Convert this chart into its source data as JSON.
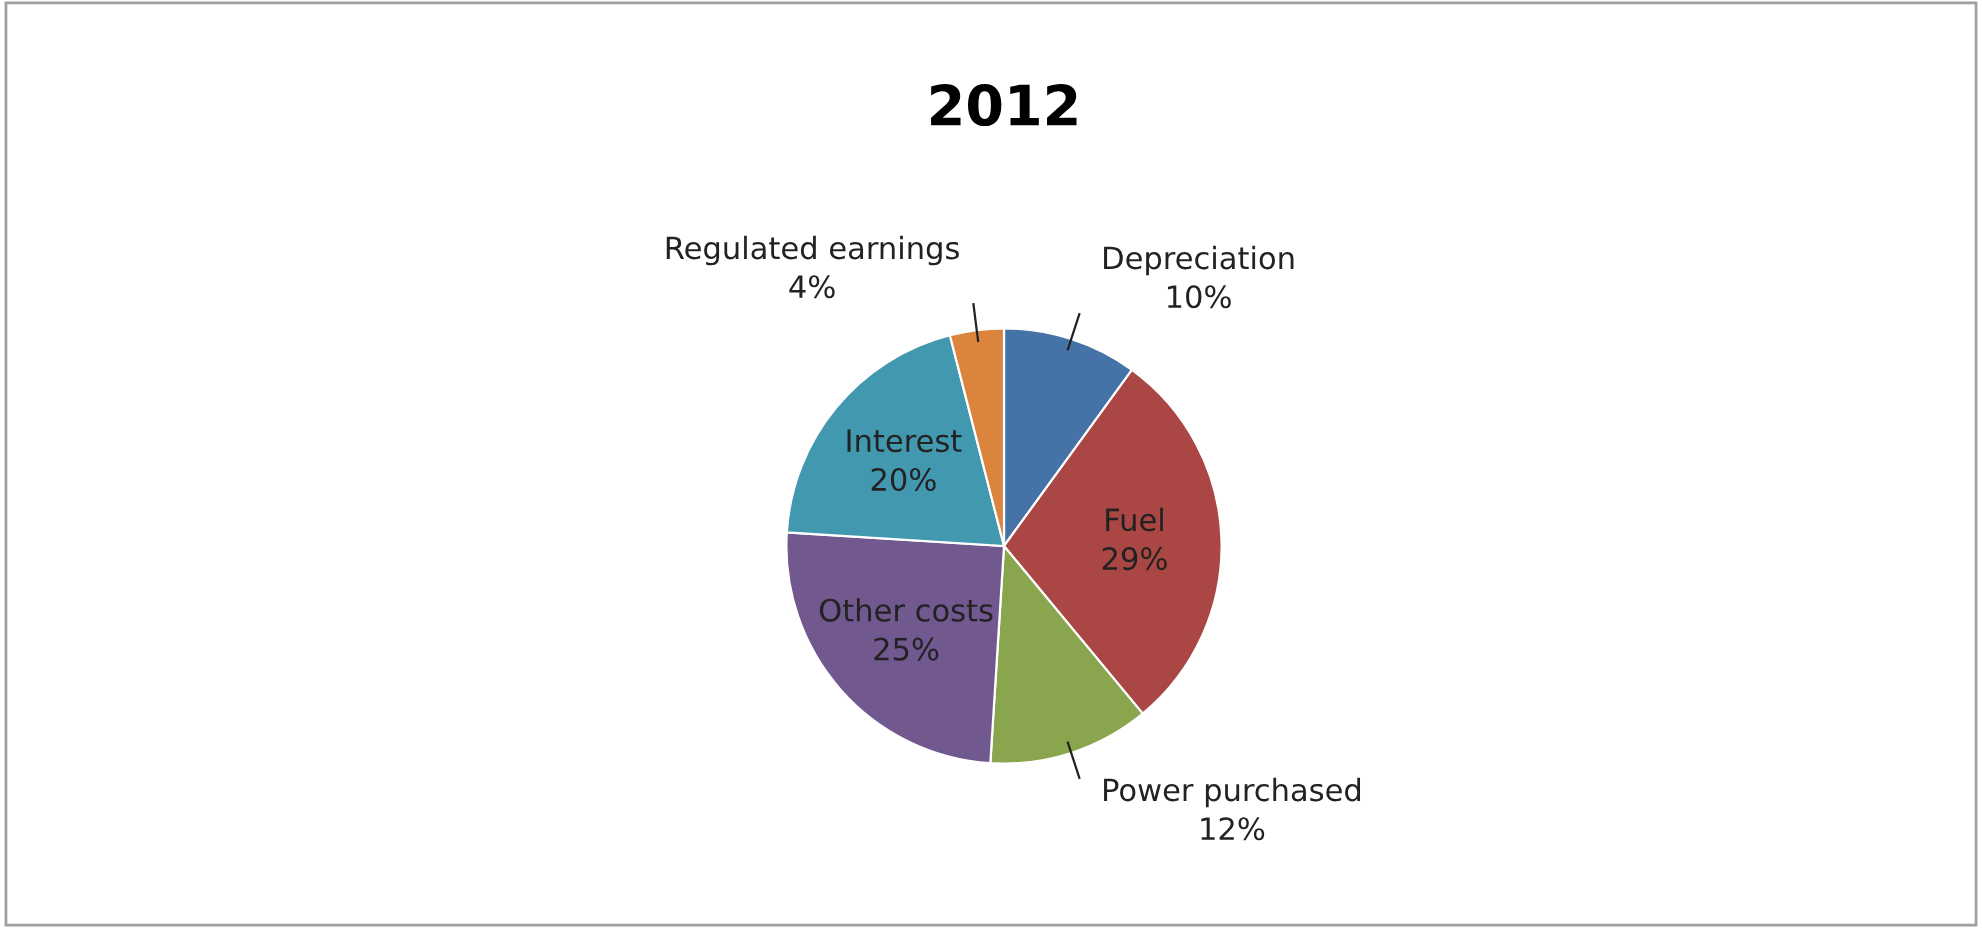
{
  "chart_data": {
    "type": "pie",
    "title": "2012",
    "categories": [
      "Depreciation",
      "Fuel",
      "Power purchased",
      "Other costs",
      "Interest",
      "Regulated earnings"
    ],
    "values": [
      10,
      29,
      12,
      25,
      20,
      4
    ],
    "colors": [
      "#4572a7",
      "#aa4643",
      "#89a54e",
      "#71588f",
      "#4198af",
      "#db843d"
    ],
    "value_labels": [
      "10%",
      "29%",
      "12%",
      "25%",
      "20%",
      "4%"
    ],
    "legend": false
  }
}
